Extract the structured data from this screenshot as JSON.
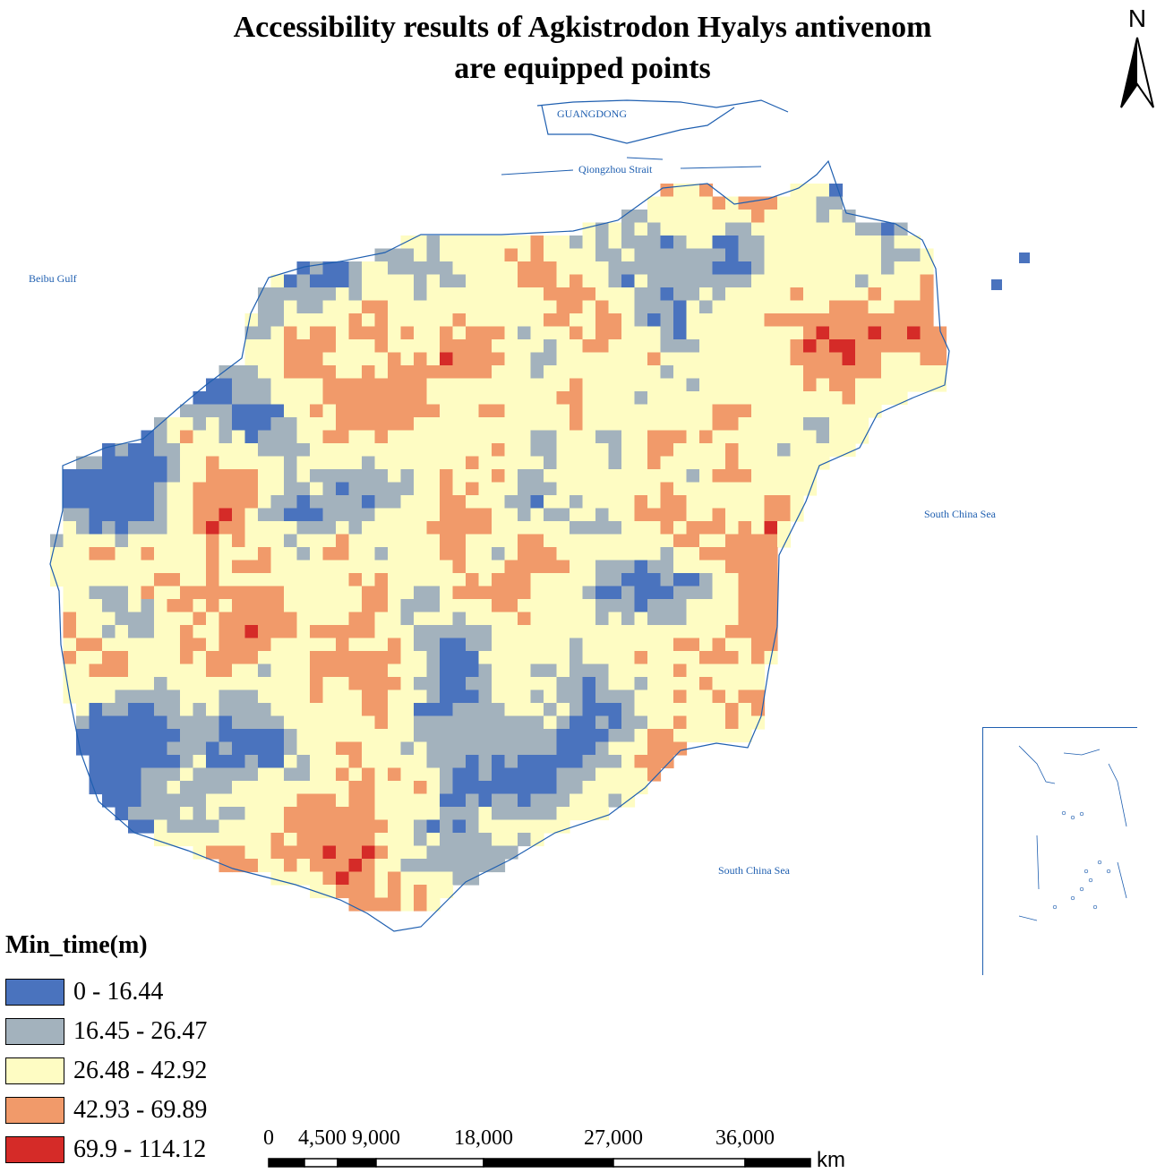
{
  "title": {
    "line1": "Accessibility results of Agkistrodon Hyalys antivenom",
    "line2": "are equipped points"
  },
  "north_label": "N",
  "map_labels": {
    "guangdong": "GUANGDONG",
    "qiongzhou_strait": "Qiongzhou Strait",
    "beibu_gulf": "Beibu Gulf",
    "south_china_sea_east": "South China Sea",
    "south_china_sea_south": "South China Sea"
  },
  "legend": {
    "title": "Min_time(m)",
    "classes": [
      {
        "label": "0 - 16.44",
        "color": "#4a73be"
      },
      {
        "label": "16.45 - 26.47",
        "color": "#a3b2bd"
      },
      {
        "label": "26.48 - 42.92",
        "color": "#fefcc3"
      },
      {
        "label": "42.93 - 69.89",
        "color": "#f19a6a"
      },
      {
        "label": "69.9 - 114.12",
        "color": "#d52b28"
      }
    ]
  },
  "scale_bar": {
    "ticks": [
      "0",
      "4,500",
      "9,000",
      "18,000",
      "27,000",
      "36,000"
    ],
    "unit": "km"
  },
  "colors": {
    "coastline": "#1f5fb0"
  }
}
